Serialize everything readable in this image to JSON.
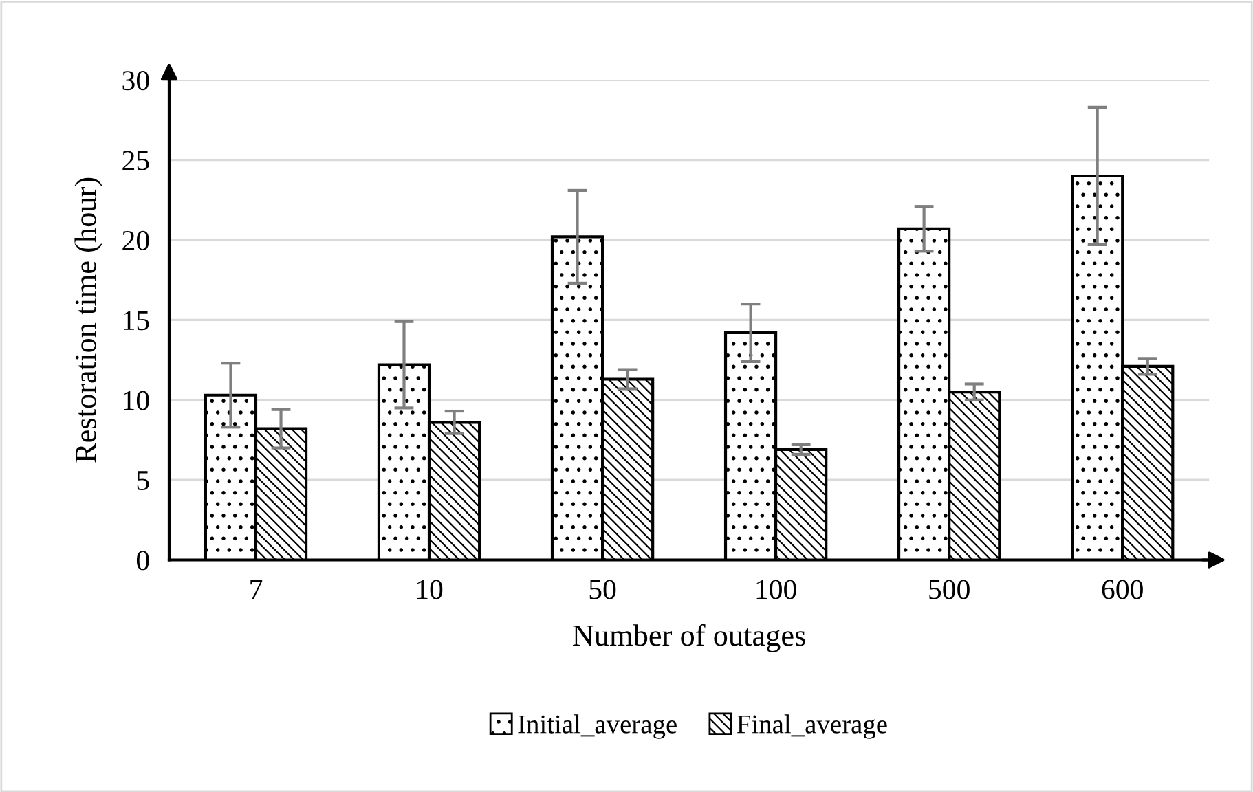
{
  "chart_data": {
    "type": "bar",
    "xlabel": "Number of outages",
    "ylabel": "Restoration time (hour)",
    "categories": [
      "7",
      "10",
      "50",
      "100",
      "500",
      "600"
    ],
    "series": [
      {
        "name": "Initial_average",
        "color": "#000000",
        "values": [
          10.3,
          12.2,
          20.2,
          14.2,
          20.7,
          24.0
        ],
        "errors": [
          2.0,
          2.7,
          2.9,
          1.8,
          1.4,
          4.3
        ]
      },
      {
        "name": "Final_average",
        "color": "#000000",
        "values": [
          8.2,
          8.6,
          11.3,
          6.9,
          10.5,
          12.1
        ],
        "errors": [
          1.2,
          0.7,
          0.6,
          0.3,
          0.5,
          0.5
        ]
      }
    ],
    "ylim": [
      0,
      30
    ],
    "yticks": [
      0,
      5,
      10,
      15,
      20,
      25,
      30
    ],
    "grid": "y",
    "legend": "bottom"
  }
}
